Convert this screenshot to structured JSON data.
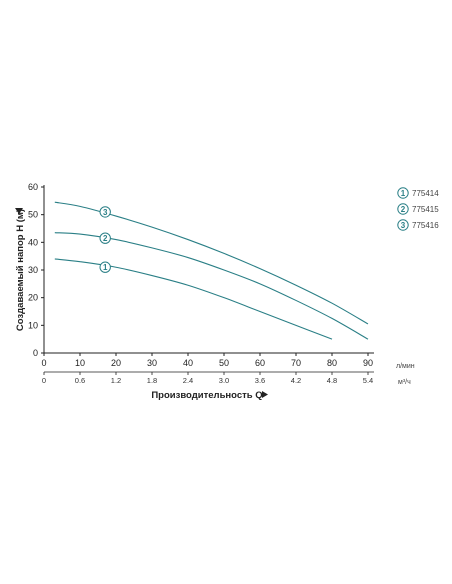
{
  "chart_data": {
    "type": "line",
    "xlabel": "Производительность Q",
    "ylabel": "Создаваемый напор H (м)",
    "x_unit": "л/мин",
    "x2_unit": "м³/ч",
    "xlim": [
      0,
      90
    ],
    "ylim": [
      0,
      60
    ],
    "x_ticks": [
      "0",
      "10",
      "20",
      "30",
      "40",
      "50",
      "60",
      "70",
      "80",
      "90"
    ],
    "x2_ticks": [
      "0",
      "0.6",
      "1.2",
      "1.8",
      "2.4",
      "3.0",
      "3.6",
      "4.2",
      "4.8",
      "5.4"
    ],
    "y_ticks": [
      "0",
      "10",
      "20",
      "30",
      "40",
      "50",
      "60"
    ],
    "grid": false,
    "legend_position": "right",
    "series": [
      {
        "name": "775414",
        "marker": "1",
        "x": [
          3,
          10,
          20,
          30,
          40,
          50,
          60,
          70,
          80
        ],
        "y": [
          34,
          33,
          31,
          28,
          24.5,
          20,
          15,
          10,
          5
        ],
        "marker_at": [
          17,
          31
        ]
      },
      {
        "name": "775415",
        "marker": "2",
        "x": [
          3,
          10,
          20,
          30,
          40,
          50,
          60,
          70,
          80,
          90
        ],
        "y": [
          43.5,
          43,
          41,
          38,
          34.5,
          30,
          25,
          19,
          12.5,
          5
        ],
        "marker_at": [
          17,
          41.5
        ]
      },
      {
        "name": "775416",
        "marker": "3",
        "x": [
          3,
          10,
          20,
          30,
          40,
          50,
          60,
          70,
          80,
          90
        ],
        "y": [
          54.5,
          53,
          49.5,
          45.5,
          41,
          36,
          30.5,
          24.5,
          18,
          10.5
        ],
        "marker_at": [
          17,
          51
        ]
      }
    ],
    "colors": {
      "curve": "#2a7f86",
      "axis": "#222222"
    }
  }
}
